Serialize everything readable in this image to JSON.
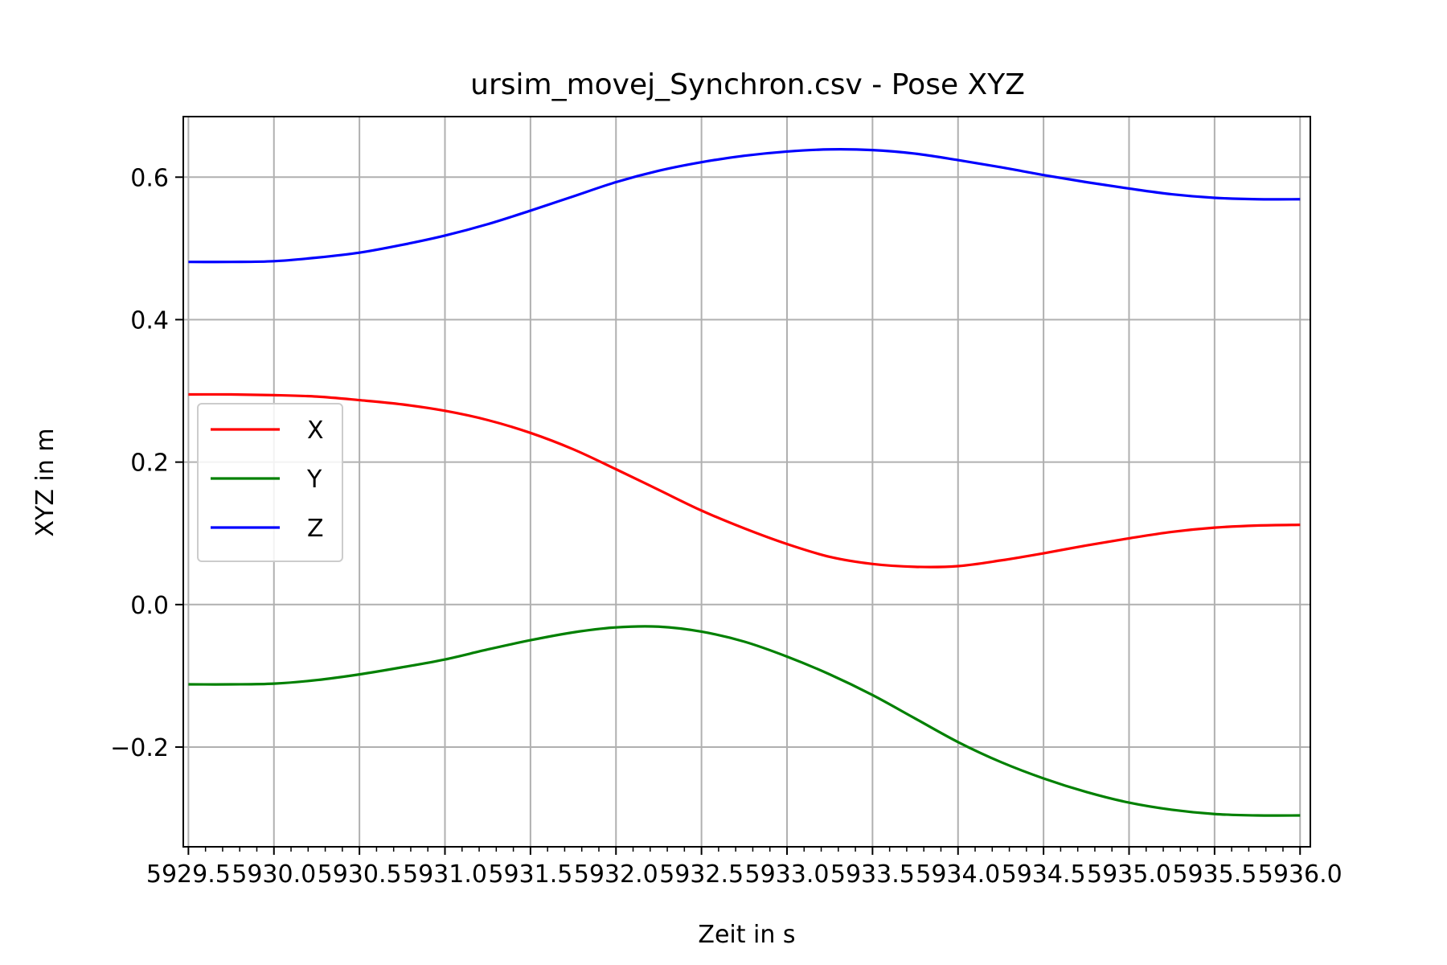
{
  "chart_data": {
    "type": "line",
    "title": "ursim_movej_Synchron.csv - Pose XYZ",
    "xlabel": "Zeit in s",
    "ylabel": "XYZ in m",
    "xlim": [
      5929.47,
      5936.06
    ],
    "ylim": [
      -0.34,
      0.685
    ],
    "grid": true,
    "legend_position": "center-left",
    "x_ticks": [
      {
        "value": 5929.5,
        "label": "5929.5"
      },
      {
        "value": 5930.0,
        "label": "5930.0"
      },
      {
        "value": 5930.5,
        "label": "5930.5"
      },
      {
        "value": 5931.0,
        "label": "5931.0"
      },
      {
        "value": 5931.5,
        "label": "5931.5"
      },
      {
        "value": 5932.0,
        "label": "5932.0"
      },
      {
        "value": 5932.5,
        "label": "5932.5"
      },
      {
        "value": 5933.0,
        "label": "5933.0"
      },
      {
        "value": 5933.5,
        "label": "5933.5"
      },
      {
        "value": 5934.0,
        "label": "5934.0"
      },
      {
        "value": 5934.5,
        "label": "5934.5"
      },
      {
        "value": 5935.0,
        "label": "5935.0"
      },
      {
        "value": 5935.5,
        "label": "5935.5"
      },
      {
        "value": 5936.0,
        "label": "5936.0"
      }
    ],
    "y_ticks": [
      {
        "value": -0.2,
        "label": "−0.2"
      },
      {
        "value": 0.0,
        "label": "0.0"
      },
      {
        "value": 0.2,
        "label": "0.2"
      },
      {
        "value": 0.4,
        "label": "0.4"
      },
      {
        "value": 0.6,
        "label": "0.6"
      }
    ],
    "series": [
      {
        "name": "X",
        "color": "#ff0000",
        "x": [
          5929.5,
          5929.75,
          5930.0,
          5930.25,
          5930.5,
          5930.75,
          5931.0,
          5931.25,
          5931.5,
          5931.75,
          5932.0,
          5932.25,
          5932.5,
          5932.75,
          5933.0,
          5933.25,
          5933.5,
          5933.75,
          5934.0,
          5934.25,
          5934.5,
          5934.75,
          5935.0,
          5935.25,
          5935.5,
          5935.75,
          5936.0
        ],
        "y": [
          0.295,
          0.295,
          0.294,
          0.292,
          0.287,
          0.281,
          0.272,
          0.259,
          0.241,
          0.218,
          0.19,
          0.161,
          0.132,
          0.107,
          0.085,
          0.067,
          0.057,
          0.053,
          0.054,
          0.062,
          0.072,
          0.083,
          0.093,
          0.102,
          0.108,
          0.111,
          0.112
        ]
      },
      {
        "name": "Y",
        "color": "#008000",
        "x": [
          5929.5,
          5929.75,
          5930.0,
          5930.25,
          5930.5,
          5930.75,
          5931.0,
          5931.25,
          5931.5,
          5931.75,
          5932.0,
          5932.25,
          5932.5,
          5932.75,
          5933.0,
          5933.25,
          5933.5,
          5933.75,
          5934.0,
          5934.25,
          5934.5,
          5934.75,
          5935.0,
          5935.25,
          5935.5,
          5935.75,
          5936.0
        ],
        "y": [
          -0.112,
          -0.112,
          -0.111,
          -0.106,
          -0.098,
          -0.088,
          -0.077,
          -0.063,
          -0.05,
          -0.039,
          -0.032,
          -0.031,
          -0.038,
          -0.052,
          -0.073,
          -0.098,
          -0.127,
          -0.16,
          -0.193,
          -0.221,
          -0.244,
          -0.263,
          -0.278,
          -0.288,
          -0.294,
          -0.296,
          -0.296
        ]
      },
      {
        "name": "Z",
        "color": "#0000ff",
        "x": [
          5929.5,
          5929.75,
          5930.0,
          5930.25,
          5930.5,
          5930.75,
          5931.0,
          5931.25,
          5931.5,
          5931.75,
          5932.0,
          5932.25,
          5932.5,
          5932.75,
          5933.0,
          5933.25,
          5933.5,
          5933.75,
          5934.0,
          5934.25,
          5934.5,
          5934.75,
          5935.0,
          5935.25,
          5935.5,
          5935.75,
          5936.0
        ],
        "y": [
          0.481,
          0.481,
          0.482,
          0.487,
          0.494,
          0.505,
          0.518,
          0.534,
          0.553,
          0.573,
          0.593,
          0.609,
          0.621,
          0.63,
          0.636,
          0.639,
          0.638,
          0.633,
          0.624,
          0.614,
          0.603,
          0.593,
          0.584,
          0.576,
          0.571,
          0.569,
          0.569
        ]
      }
    ]
  }
}
